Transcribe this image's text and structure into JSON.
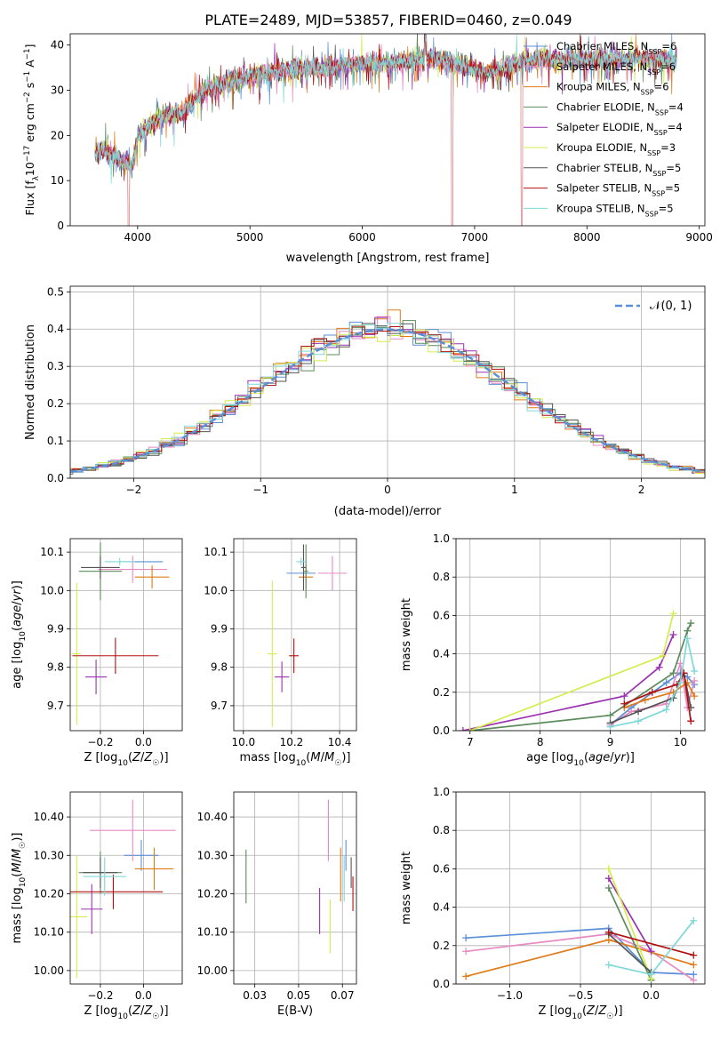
{
  "title": "PLATE=2489, MJD=53857, FIBERID=0460, z=0.049",
  "series_colors": [
    "#5a8fd8",
    "#e78ac3",
    "#e07b1a",
    "#5c8b5c",
    "#9b30b0",
    "#d4ec4c",
    "#555555",
    "#b01010",
    "#7fd8d8"
  ],
  "chart_data": [
    {
      "type": "line",
      "title": "PLATE=2489, MJD=53857, FIBERID=0460, z=0.049",
      "xlabel": "wavelength [Angstrom, rest frame]",
      "ylabel": "Flux [fλ10⁻¹⁷ erg cm⁻² s⁻¹ A⁻¹]",
      "xlim": [
        3400,
        9050
      ],
      "ylim": [
        0,
        42.5
      ],
      "xticks": [
        4000,
        5000,
        6000,
        7000,
        8000,
        9000
      ],
      "yticks": [
        0,
        10,
        20,
        30,
        40
      ],
      "grid": false,
      "legend_position": "top-right",
      "series": [
        {
          "name": "Chabrier MILES, N_SSP=6"
        },
        {
          "name": "Salpeter MILES, N_SSP=6"
        },
        {
          "name": "Kroupa MILES, N_SSP=6"
        },
        {
          "name": "Chabrier ELODIE, N_SSP=4"
        },
        {
          "name": "Salpeter ELODIE, N_SSP=4"
        },
        {
          "name": "Kroupa ELODIE, N_SSP=3"
        },
        {
          "name": "Chabrier STELIB, N_SSP=5"
        },
        {
          "name": "Salpeter STELIB, N_SSP=5"
        },
        {
          "name": "Kroupa STELIB, N_SSP=5"
        }
      ],
      "continuum": {
        "x": [
          3620,
          3700,
          3800,
          3900,
          3950,
          4000,
          4100,
          4200,
          4300,
          4400,
          4500,
          4600,
          4800,
          5000,
          5200,
          5400,
          5600,
          5800,
          6000,
          6200,
          6400,
          6600,
          6800,
          7000,
          7100,
          7200,
          7400,
          7600,
          7800,
          8000,
          8200,
          8400,
          8600,
          8800
        ],
        "y": [
          16,
          17,
          15.5,
          14,
          13,
          20,
          22,
          24,
          25,
          25,
          28,
          30,
          32,
          33,
          34,
          34.5,
          35,
          35.5,
          36,
          36,
          36.5,
          37,
          36.5,
          35,
          34,
          34.5,
          36,
          37,
          37,
          37,
          37,
          37,
          37,
          37
        ]
      },
      "sharp_drops": [
        {
          "x": 3920,
          "to": 0
        },
        {
          "x": 6800,
          "to": 0
        },
        {
          "x": 7420,
          "to": 0
        }
      ]
    },
    {
      "type": "area",
      "xlabel": "(data-model)/error",
      "ylabel": "Normed distribution",
      "xlim": [
        -2.5,
        2.5
      ],
      "ylim": [
        0,
        0.515
      ],
      "xticks": [
        -2,
        -1,
        0,
        1,
        2
      ],
      "yticks": [
        0.0,
        0.1,
        0.2,
        0.3,
        0.4,
        0.5
      ],
      "grid": true,
      "legend_position": "top-right",
      "reference": {
        "name": "𝒩(0, 1)",
        "mean": 0,
        "sigma": 1
      },
      "bin_width": 0.1
    },
    {
      "type": "scatter",
      "xlabel": "Z [log10(Z/Z☉)]",
      "ylabel": "age  [log10(age/yr)]",
      "xlim": [
        -0.34,
        0.18
      ],
      "ylim": [
        9.635,
        10.135
      ],
      "xticks": [
        -0.2,
        0.0
      ],
      "yticks": [
        9.7,
        9.8,
        9.9,
        10.0,
        10.1
      ],
      "grid": true,
      "points": [
        {
          "x": -0.01,
          "y": 10.075,
          "xerr": 0.1,
          "yerr": 0.0
        },
        {
          "x": -0.05,
          "y": 10.055,
          "xerr": 0.16,
          "yerr": 0.035
        },
        {
          "x": 0.04,
          "y": 10.035,
          "xerr": 0.08,
          "yerr": 0.03
        },
        {
          "x": -0.2,
          "y": 10.05,
          "xerr": 0.1,
          "yerr": 0.075
        },
        {
          "x": -0.22,
          "y": 9.775,
          "xerr": 0.05,
          "yerr": 0.045
        },
        {
          "x": -0.31,
          "y": 9.835,
          "xerr": 0.02,
          "yerr": 0.185
        },
        {
          "x": -0.2,
          "y": 10.06,
          "xerr": 0.09,
          "yerr": 0.03
        },
        {
          "x": -0.13,
          "y": 9.83,
          "xerr": 0.2,
          "yerr": 0.047
        },
        {
          "x": -0.11,
          "y": 10.075,
          "xerr": 0.07,
          "yerr": 0.01
        }
      ]
    },
    {
      "type": "scatter",
      "xlabel": "mass [log10(M/M☉)]",
      "xlim": [
        9.96,
        10.47
      ],
      "ylim": [
        9.635,
        10.135
      ],
      "xticks": [
        10.0,
        10.2,
        10.4
      ],
      "yticks": [
        9.7,
        9.8,
        9.9,
        10.0,
        10.1
      ],
      "grid": true,
      "points": [
        {
          "x": 10.24,
          "y": 10.045,
          "xerr": 0.06,
          "yerr": 0.0
        },
        {
          "x": 10.37,
          "y": 10.045,
          "xerr": 0.06,
          "yerr": 0.045
        },
        {
          "x": 10.26,
          "y": 10.035,
          "xerr": 0.03,
          "yerr": 0.03
        },
        {
          "x": 10.26,
          "y": 10.05,
          "xerr": 0.01,
          "yerr": 0.07
        },
        {
          "x": 10.16,
          "y": 9.775,
          "xerr": 0.03,
          "yerr": 0.04
        },
        {
          "x": 10.12,
          "y": 9.835,
          "xerr": 0.02,
          "yerr": 0.19
        },
        {
          "x": 10.25,
          "y": 10.06,
          "xerr": 0.01,
          "yerr": 0.06
        },
        {
          "x": 10.21,
          "y": 9.83,
          "xerr": 0.02,
          "yerr": 0.045
        },
        {
          "x": 10.24,
          "y": 10.075,
          "xerr": 0.02,
          "yerr": 0.01
        }
      ]
    },
    {
      "type": "line",
      "xlabel": "age  [log10(age/yr)]",
      "ylabel": "mass weight",
      "xlim": [
        6.8,
        10.35
      ],
      "ylim": [
        0.0,
        1.0
      ],
      "xticks": [
        7,
        8,
        9,
        10
      ],
      "yticks": [
        0.0,
        0.2,
        0.4,
        0.6,
        0.8,
        1.0
      ],
      "grid": true,
      "series": [
        {
          "x": [
            9.0,
            9.3,
            9.8,
            10.0,
            10.1,
            10.2
          ],
          "y": [
            0.03,
            0.12,
            0.25,
            0.3,
            0.28,
            0.24
          ]
        },
        {
          "x": [
            9.0,
            9.3,
            9.8,
            10.0,
            10.1,
            10.2
          ],
          "y": [
            0.03,
            0.1,
            0.14,
            0.35,
            0.12,
            0.26
          ]
        },
        {
          "x": [
            9.2,
            9.5,
            9.9,
            10.1,
            10.2
          ],
          "y": [
            0.12,
            0.16,
            0.2,
            0.25,
            0.18
          ]
        },
        {
          "x": [
            7.0,
            9.0,
            9.9,
            10.1,
            10.15
          ],
          "y": [
            0.0,
            0.08,
            0.3,
            0.52,
            0.56
          ]
        },
        {
          "x": [
            6.9,
            9.2,
            9.7,
            9.9
          ],
          "y": [
            0.0,
            0.18,
            0.33,
            0.5
          ]
        },
        {
          "x": [
            7.0,
            9.75,
            9.9
          ],
          "y": [
            0.0,
            0.39,
            0.61
          ]
        },
        {
          "x": [
            9.0,
            9.4,
            9.9,
            10.05,
            10.15
          ],
          "y": [
            0.04,
            0.1,
            0.17,
            0.3,
            0.12
          ]
        },
        {
          "x": [
            9.2,
            9.6,
            9.95,
            10.05,
            10.15
          ],
          "y": [
            0.14,
            0.2,
            0.24,
            0.3,
            0.05
          ]
        },
        {
          "x": [
            9.0,
            9.4,
            9.8,
            10.0,
            10.1,
            10.2
          ],
          "y": [
            0.02,
            0.05,
            0.11,
            0.25,
            0.48,
            0.31
          ]
        }
      ]
    },
    {
      "type": "scatter",
      "xlabel": "Z [log10(Z/Z☉)]",
      "ylabel": "mass [log10(M/M☉)]",
      "xlim": [
        -0.34,
        0.18
      ],
      "ylim": [
        9.965,
        10.465
      ],
      "xticks": [
        -0.2,
        0.0
      ],
      "yticks": [
        10.0,
        10.1,
        10.2,
        10.3,
        10.4
      ],
      "grid": true,
      "points": [
        {
          "x": -0.01,
          "y": 10.3,
          "xerr": 0.08,
          "yerr": 0.04
        },
        {
          "x": -0.05,
          "y": 10.365,
          "xerr": 0.2,
          "yerr": 0.08
        },
        {
          "x": 0.05,
          "y": 10.265,
          "xerr": 0.09,
          "yerr": 0.055
        },
        {
          "x": -0.2,
          "y": 10.255,
          "xerr": 0.1,
          "yerr": 0.055
        },
        {
          "x": -0.24,
          "y": 10.16,
          "xerr": 0.05,
          "yerr": 0.065
        },
        {
          "x": -0.31,
          "y": 10.14,
          "xerr": 0.05,
          "yerr": 0.16
        },
        {
          "x": -0.2,
          "y": 10.255,
          "xerr": 0.08,
          "yerr": 0.04
        },
        {
          "x": -0.14,
          "y": 10.205,
          "xerr": 0.23,
          "yerr": 0.045
        },
        {
          "x": -0.18,
          "y": 10.245,
          "xerr": 0.1,
          "yerr": 0.05
        }
      ]
    },
    {
      "type": "scatter",
      "xlabel": "E(B-V)",
      "xlim": [
        0.013,
        0.083
      ],
      "ylim": [
        9.965,
        10.465
      ],
      "xticks": [
        0.025,
        0.05,
        0.075
      ],
      "yticks": [
        10.0,
        10.1,
        10.2,
        10.3,
        10.4
      ],
      "grid": true,
      "points": [
        {
          "x": 0.077,
          "y": 10.3,
          "xerr": 0.0,
          "yerr": 0.04
        },
        {
          "x": 0.067,
          "y": 10.365,
          "xerr": 0.0,
          "yerr": 0.08
        },
        {
          "x": 0.074,
          "y": 10.25,
          "xerr": 0.0,
          "yerr": 0.07
        },
        {
          "x": 0.02,
          "y": 10.245,
          "xerr": 0.0,
          "yerr": 0.07
        },
        {
          "x": 0.062,
          "y": 10.155,
          "xerr": 0.0,
          "yerr": 0.06
        },
        {
          "x": 0.068,
          "y": 10.115,
          "xerr": 0.0,
          "yerr": 0.07
        },
        {
          "x": 0.08,
          "y": 10.255,
          "xerr": 0.0,
          "yerr": 0.04
        },
        {
          "x": 0.081,
          "y": 10.2,
          "xerr": 0.0,
          "yerr": 0.045
        },
        {
          "x": 0.076,
          "y": 10.24,
          "xerr": 0.0,
          "yerr": 0.06
        }
      ]
    },
    {
      "type": "line",
      "xlabel": "Z [log10(Z/Z☉)]",
      "ylabel": "mass weight",
      "xlim": [
        -1.38,
        0.38
      ],
      "ylim": [
        0.0,
        1.0
      ],
      "xticks": [
        -1.0,
        -0.5,
        0.0
      ],
      "yticks": [
        0.0,
        0.2,
        0.4,
        0.6,
        0.8,
        1.0
      ],
      "grid": true,
      "series": [
        {
          "x": [
            -1.31,
            -0.3,
            0.0,
            0.3
          ],
          "y": [
            0.24,
            0.29,
            0.06,
            0.05
          ]
        },
        {
          "x": [
            -1.31,
            -0.3,
            0.0,
            0.3
          ],
          "y": [
            0.17,
            0.26,
            0.17,
            0.02
          ]
        },
        {
          "x": [
            -1.31,
            -0.3,
            0.3
          ],
          "y": [
            0.04,
            0.23,
            0.1
          ]
        },
        {
          "x": [
            -0.3,
            0.0
          ],
          "y": [
            0.5,
            0.02
          ]
        },
        {
          "x": [
            -0.3,
            0.0
          ],
          "y": [
            0.55,
            0.17
          ]
        },
        {
          "x": [
            -0.3,
            0.0
          ],
          "y": [
            0.6,
            0.03
          ]
        },
        {
          "x": [
            -0.3,
            0.0
          ],
          "y": [
            0.26,
            0.06
          ]
        },
        {
          "x": [
            -0.3,
            0.3
          ],
          "y": [
            0.27,
            0.15
          ]
        },
        {
          "x": [
            -0.3,
            0.0,
            0.3
          ],
          "y": [
            0.1,
            0.05,
            0.33
          ]
        }
      ]
    }
  ]
}
